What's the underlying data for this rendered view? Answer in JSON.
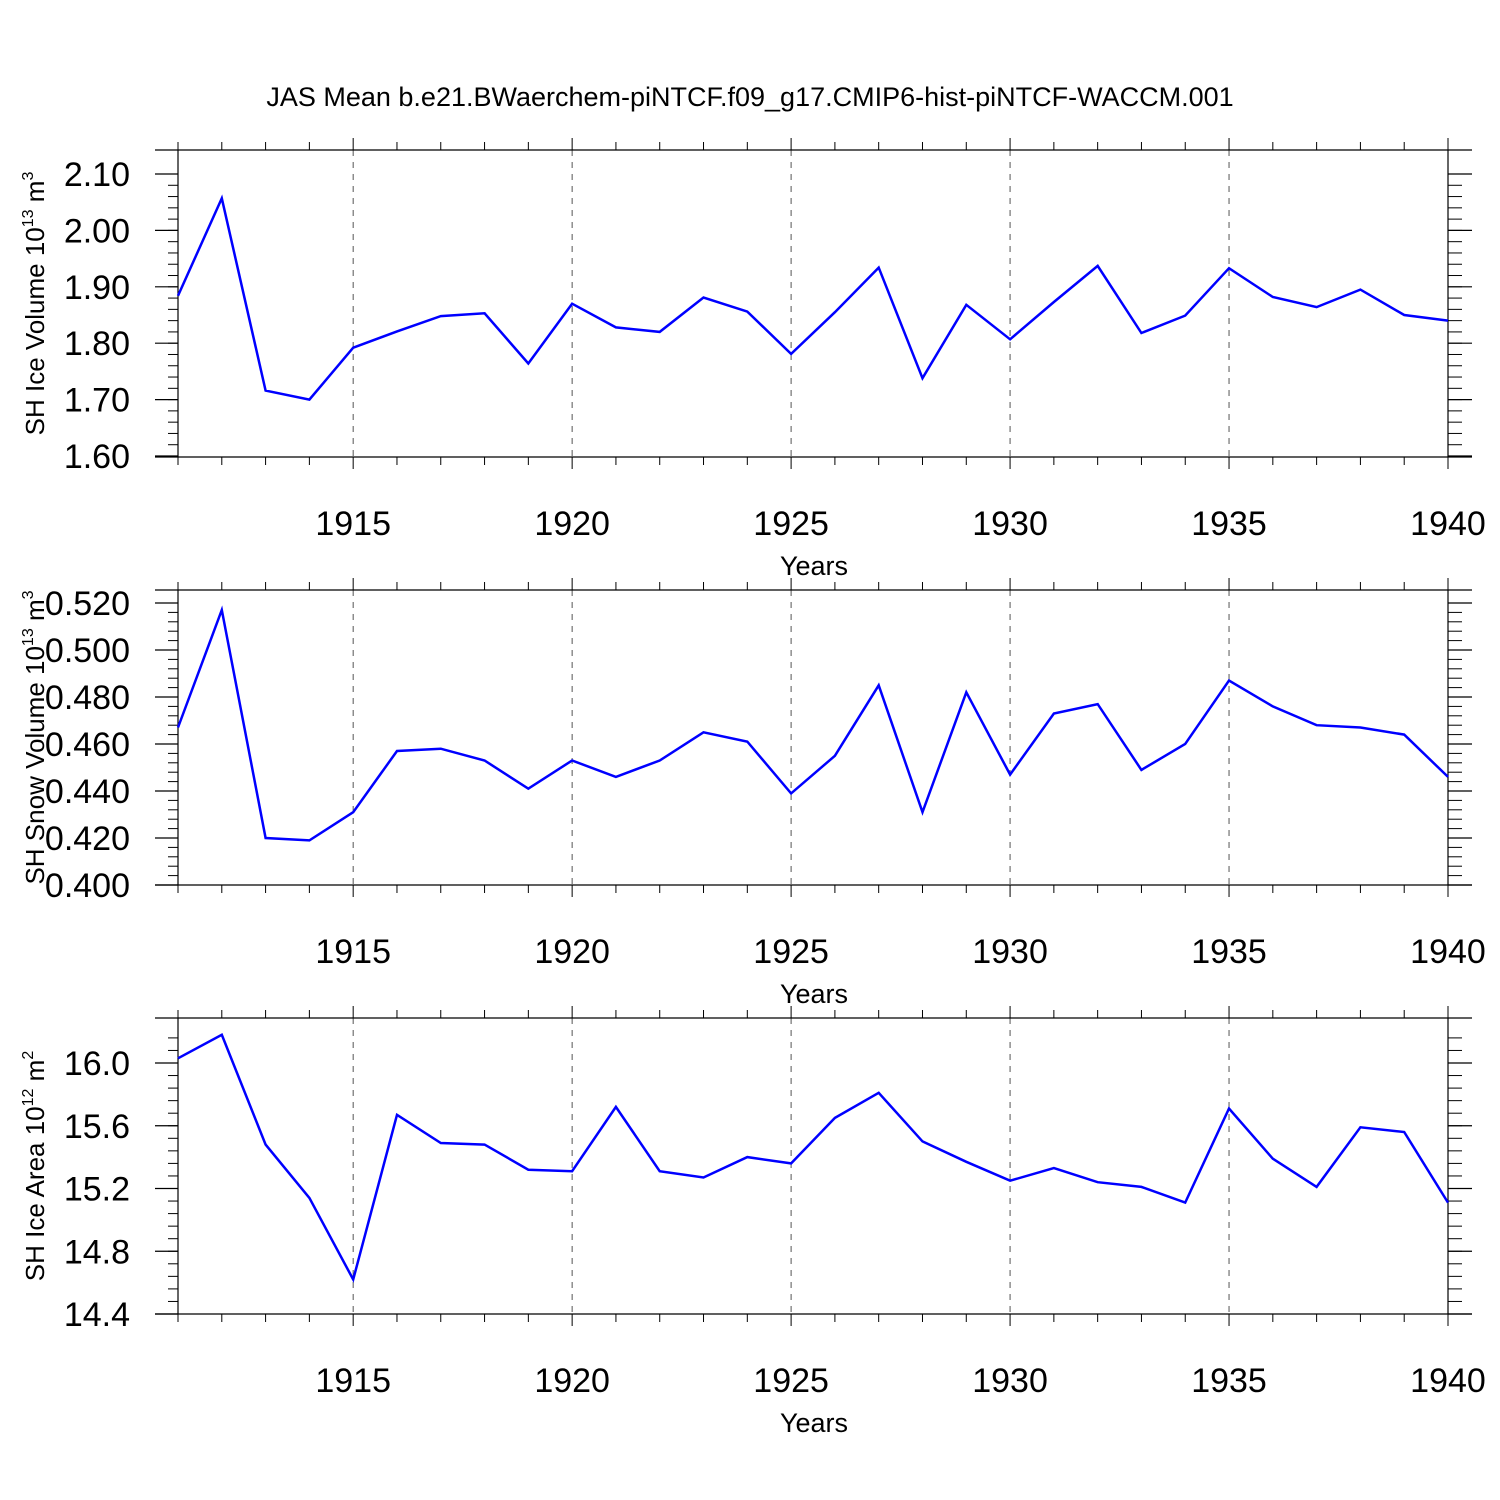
{
  "title": "JAS Mean b.e21.BWaerchem-piNTCF.f09_g17.CMIP6-hist-piNTCF-WACCM.001",
  "chart_data": [
    {
      "type": "line",
      "ylabel_main": "SH Ice Volume 10",
      "ylabel_exp": "13",
      "ylabel_unit": " m",
      "ylabel_unit_exp": "3",
      "xlabel": "Years",
      "xlim": [
        1911,
        1940
      ],
      "ylim": [
        1.6,
        2.1
      ],
      "yticks": [
        "1.60",
        "1.70",
        "1.80",
        "1.90",
        "2.00",
        "2.10"
      ],
      "xticks": [
        "1915",
        "1920",
        "1925",
        "1930",
        "1935",
        "1940"
      ],
      "x": [
        1911,
        1912,
        1913,
        1914,
        1915,
        1916,
        1917,
        1918,
        1919,
        1920,
        1921,
        1922,
        1923,
        1924,
        1925,
        1926,
        1927,
        1928,
        1929,
        1930,
        1931,
        1932,
        1933,
        1934,
        1935,
        1936,
        1937,
        1938,
        1939,
        1940
      ],
      "values": [
        1.884,
        2.057,
        1.716,
        1.7,
        1.792,
        1.821,
        1.848,
        1.853,
        1.764,
        1.87,
        1.828,
        1.82,
        1.881,
        1.856,
        1.781,
        1.855,
        1.934,
        1.738,
        1.868,
        1.807,
        1.873,
        1.937,
        1.818,
        1.849,
        1.933,
        1.882,
        1.864,
        1.895,
        1.85,
        1.84
      ],
      "color": "#0000ff"
    },
    {
      "type": "line",
      "ylabel_main": "SH Snow Volume 10",
      "ylabel_exp": "13",
      "ylabel_unit": " m",
      "ylabel_unit_exp": "3",
      "xlabel": "Years",
      "xlim": [
        1911,
        1940
      ],
      "ylim": [
        0.4,
        0.52
      ],
      "yticks": [
        "0.400",
        "0.420",
        "0.440",
        "0.460",
        "0.480",
        "0.500",
        "0.520"
      ],
      "xticks": [
        "1915",
        "1920",
        "1925",
        "1930",
        "1935",
        "1940"
      ],
      "x": [
        1911,
        1912,
        1913,
        1914,
        1915,
        1916,
        1917,
        1918,
        1919,
        1920,
        1921,
        1922,
        1923,
        1924,
        1925,
        1926,
        1927,
        1928,
        1929,
        1930,
        1931,
        1932,
        1933,
        1934,
        1935,
        1936,
        1937,
        1938,
        1939,
        1940
      ],
      "values": [
        0.467,
        0.517,
        0.42,
        0.419,
        0.431,
        0.457,
        0.458,
        0.453,
        0.441,
        0.453,
        0.446,
        0.453,
        0.465,
        0.461,
        0.439,
        0.455,
        0.485,
        0.431,
        0.482,
        0.447,
        0.473,
        0.477,
        0.449,
        0.46,
        0.487,
        0.476,
        0.468,
        0.467,
        0.464,
        0.446
      ],
      "color": "#0000ff"
    },
    {
      "type": "line",
      "ylabel_main": "SH Ice Area 10",
      "ylabel_exp": "12",
      "ylabel_unit": " m",
      "ylabel_unit_exp": "2",
      "xlabel": "Years",
      "xlim": [
        1911,
        1940
      ],
      "ylim": [
        14.4,
        16.2
      ],
      "yticks": [
        "14.4",
        "14.8",
        "15.2",
        "15.6",
        "16.0"
      ],
      "xticks": [
        "1915",
        "1920",
        "1925",
        "1930",
        "1935",
        "1940"
      ],
      "x": [
        1911,
        1912,
        1913,
        1914,
        1915,
        1916,
        1917,
        1918,
        1919,
        1920,
        1921,
        1922,
        1923,
        1924,
        1925,
        1926,
        1927,
        1928,
        1929,
        1930,
        1931,
        1932,
        1933,
        1934,
        1935,
        1936,
        1937,
        1938,
        1939,
        1940
      ],
      "values": [
        16.03,
        16.18,
        15.48,
        15.14,
        14.62,
        15.67,
        15.49,
        15.48,
        15.32,
        15.31,
        15.72,
        15.31,
        15.27,
        15.4,
        15.36,
        15.65,
        15.81,
        15.5,
        15.37,
        15.25,
        15.33,
        15.24,
        15.21,
        15.11,
        15.71,
        15.39,
        15.21,
        15.59,
        15.56,
        15.11
      ],
      "color": "#0000ff"
    }
  ]
}
